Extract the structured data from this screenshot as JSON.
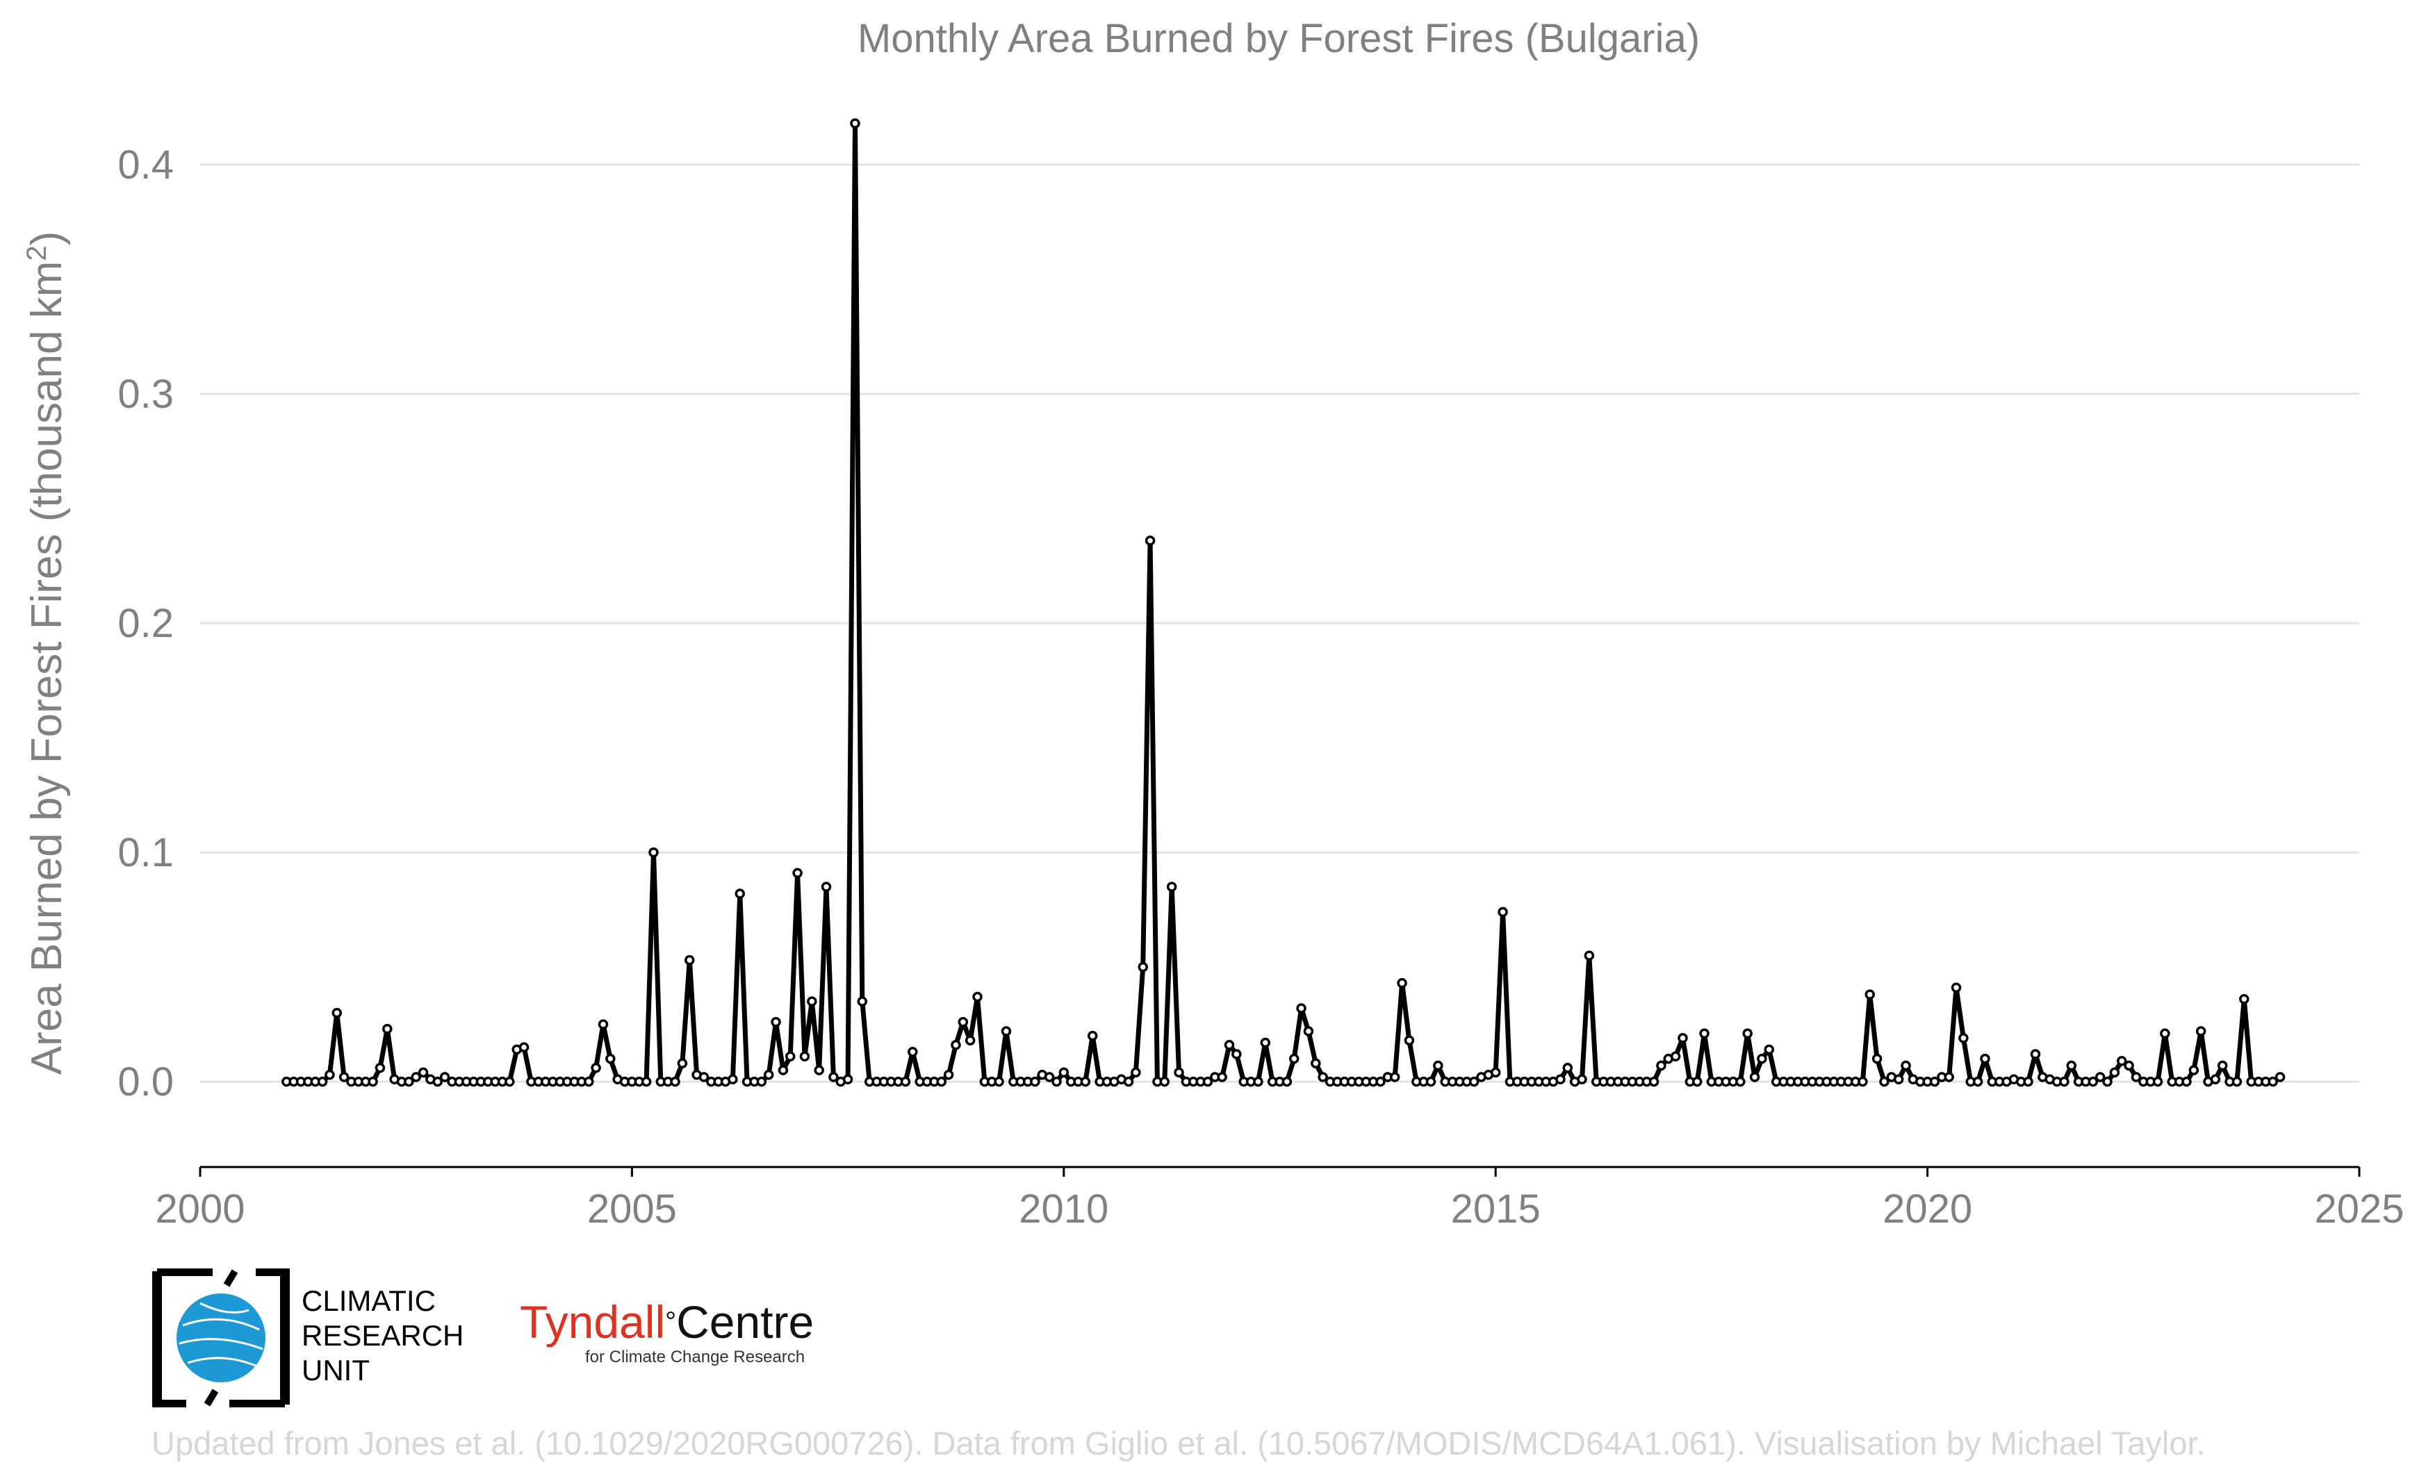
{
  "chart_data": {
    "type": "line",
    "title": "Monthly Area Burned by Forest Fires (Bulgaria)",
    "ylabel": "Area Burned by Forest Fires (thousand km",
    "ylabel_sup": "2",
    "ylabel_close": ")",
    "xlim": [
      2000,
      2025
    ],
    "ylim": [
      -0.033,
      0.43
    ],
    "xticks": [
      2000,
      2005,
      2010,
      2015,
      2020,
      2025
    ],
    "xtick_labels": [
      "2000",
      "2005",
      "2010",
      "2015",
      "2020",
      "2025"
    ],
    "yticks": [
      0.0,
      0.1,
      0.2,
      0.3,
      0.4
    ],
    "ytick_labels": [
      "0.0",
      "0.1",
      "0.2",
      "0.3",
      "0.4"
    ],
    "grid": "horizontal",
    "start": "2001-01",
    "series": [
      {
        "values": [
          0,
          0,
          0,
          0,
          0,
          0,
          0.003,
          0.03,
          0.002,
          0,
          0,
          0,
          0,
          0.006,
          0.023,
          0.001,
          0,
          0,
          0.002,
          0.004,
          0.001,
          0,
          0.002,
          0,
          0,
          0,
          0,
          0,
          0,
          0,
          0,
          0,
          0.014,
          0.015,
          0,
          0,
          0,
          0,
          0,
          0,
          0,
          0,
          0,
          0.006,
          0.025,
          0.01,
          0.001,
          0,
          0,
          0,
          0,
          0.1,
          0,
          0,
          0,
          0.008,
          0.053,
          0.003,
          0.002,
          0,
          0,
          0,
          0.001,
          0.082,
          0,
          0,
          0,
          0.003,
          0.026,
          0.005,
          0.011,
          0.091,
          0.011,
          0.035,
          0.005,
          0.085,
          0.002,
          0,
          0.001,
          0.418,
          0.035,
          0,
          0,
          0,
          0,
          0,
          0,
          0.013,
          0,
          0,
          0,
          0,
          0.003,
          0.016,
          0.026,
          0.018,
          0.037,
          0,
          0,
          0,
          0.022,
          0,
          0,
          0,
          0,
          0.003,
          0.002,
          0,
          0.004,
          0,
          0,
          0,
          0.02,
          0,
          0,
          0,
          0.001,
          0,
          0.004,
          0.05,
          0.236,
          0,
          0,
          0.085,
          0.004,
          0,
          0,
          0,
          0,
          0.002,
          0.002,
          0.016,
          0.012,
          0,
          0,
          0,
          0.017,
          0,
          0,
          0,
          0.01,
          0.032,
          0.022,
          0.008,
          0.002,
          0,
          0,
          0,
          0,
          0,
          0,
          0,
          0,
          0.002,
          0.002,
          0.043,
          0.018,
          0,
          0,
          0,
          0.007,
          0,
          0,
          0,
          0,
          0,
          0.002,
          0.003,
          0.004,
          0.074,
          0,
          0,
          0,
          0,
          0,
          0,
          0,
          0.001,
          0.006,
          0,
          0.001,
          0.055,
          0,
          0,
          0,
          0,
          0,
          0,
          0,
          0,
          0,
          0.007,
          0.01,
          0.011,
          0.019,
          0,
          0,
          0.021,
          0,
          0,
          0,
          0,
          0,
          0.021,
          0.002,
          0.01,
          0.014,
          0,
          0,
          0,
          0,
          0,
          0,
          0,
          0,
          0,
          0,
          0,
          0,
          0,
          0.038,
          0.01,
          0,
          0.002,
          0.001,
          0.007,
          0.001,
          0,
          0,
          0,
          0.002,
          0.002,
          0.041,
          0.019,
          0,
          0,
          0.01,
          0,
          0,
          0,
          0.001,
          0,
          0,
          0.012,
          0.002,
          0.001,
          0,
          0,
          0.007,
          0,
          0,
          0,
          0.002,
          0,
          0.004,
          0.009,
          0.007,
          0.002,
          0,
          0,
          0,
          0.021,
          0,
          0,
          0,
          0.005,
          0.022,
          0,
          0.001,
          0.007,
          0,
          0,
          0.036,
          0,
          0,
          0,
          0,
          0.002
        ]
      }
    ]
  },
  "logos": {
    "cru_lines": [
      "CLIMATIC",
      "RESEARCH",
      "UNIT"
    ],
    "tyndall_name": "Tyndall",
    "tyndall_degree": "°",
    "tyndall_centre": "Centre",
    "tyndall_sub": "for Climate Change Research"
  },
  "credit": "Updated from Jones et al. (10.1029/2020RG000726). Data from Giglio et al. (10.5067/MODIS/MCD64A1.061). Visualisation by Michael Taylor."
}
